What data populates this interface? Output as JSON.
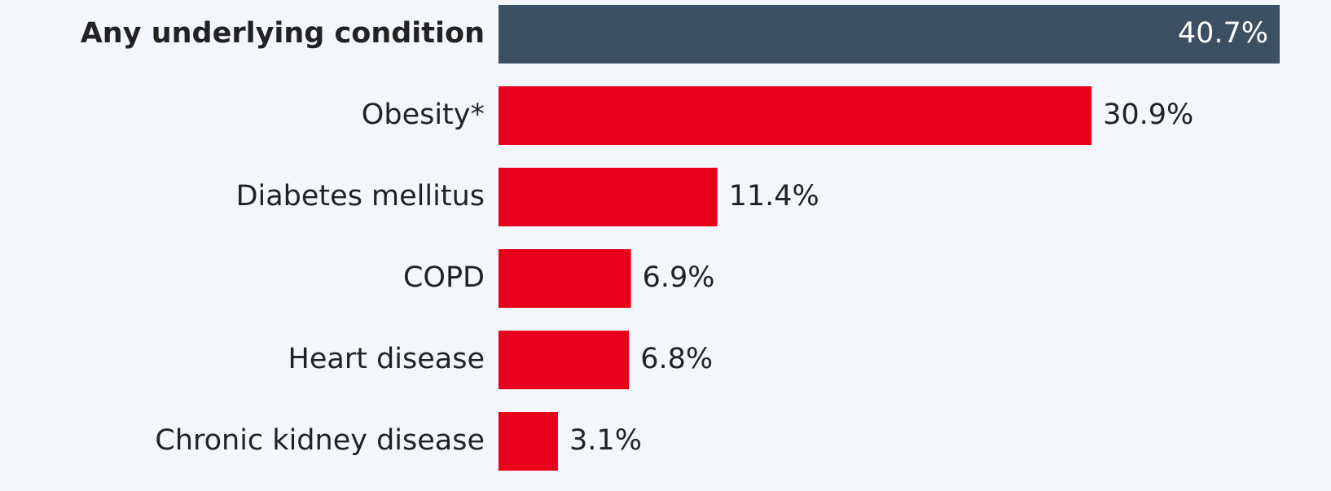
{
  "chart_data": {
    "type": "bar",
    "orientation": "horizontal",
    "categories": [
      "Any underlying condition",
      "Obesity*",
      "Diabetes mellitus",
      "COPD",
      "Heart disease",
      "Chronic kidney disease"
    ],
    "values": [
      40.7,
      30.9,
      11.4,
      6.9,
      6.8,
      3.1
    ],
    "value_labels": [
      "40.7%",
      "30.9%",
      "11.4%",
      "6.9%",
      "6.8%",
      "3.1%"
    ],
    "colors": [
      "#3c5064",
      "#e8001c",
      "#e8001c",
      "#e8001c",
      "#e8001c",
      "#e8001c"
    ],
    "xlim": [
      0,
      40.7
    ]
  }
}
